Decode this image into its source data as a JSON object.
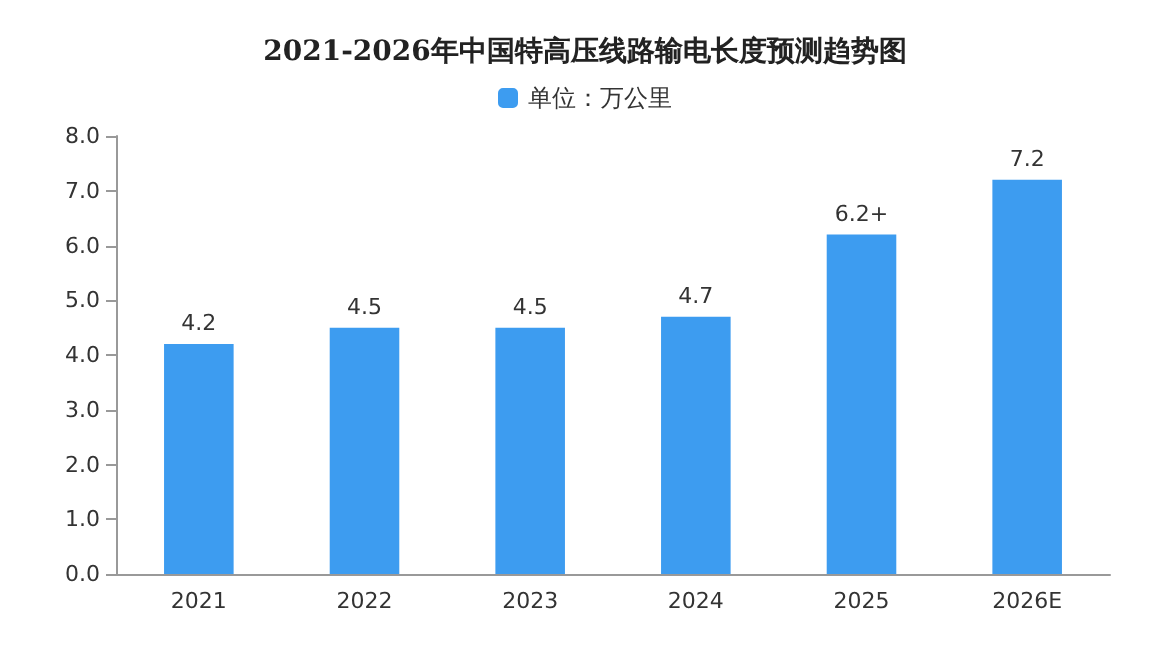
{
  "chart_data": {
    "type": "bar",
    "title": "2021-2026年中国特高压线路输电长度预测趋势图",
    "categories": [
      "2021",
      "2022",
      "2023",
      "2024",
      "2025",
      "2026E"
    ],
    "series": [
      {
        "name": "单位：万公里",
        "color": "#3d9cf0",
        "values": [
          4.2,
          4.5,
          4.5,
          4.7,
          6.2,
          7.2
        ],
        "value_labels": [
          "4.2",
          "4.5",
          "4.5",
          "4.7",
          "6.2+",
          "7.2"
        ]
      }
    ],
    "ylim": [
      0,
      8
    ],
    "yticks": [
      {
        "value": 0,
        "label": "0.0"
      },
      {
        "value": 1,
        "label": "1.0"
      },
      {
        "value": 2,
        "label": "2.0"
      },
      {
        "value": 3,
        "label": "3.0"
      },
      {
        "value": 4,
        "label": "4.0"
      },
      {
        "value": 5,
        "label": "5.0"
      },
      {
        "value": 6,
        "label": "6.0"
      },
      {
        "value": 7,
        "label": "7.0"
      },
      {
        "value": 8,
        "label": "8.0"
      }
    ],
    "grid": false,
    "legend": "top"
  }
}
